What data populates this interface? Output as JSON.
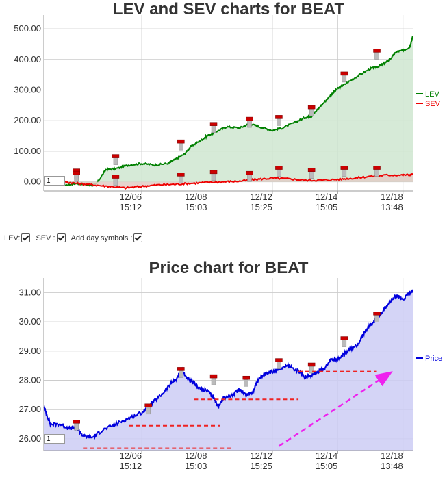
{
  "controls": {
    "lev_label": "LEV:",
    "sev_label": "SEV :",
    "day_symbols_label": "Add day symbols :",
    "lev_checked": true,
    "sev_checked": true,
    "day_symbols_checked": true
  },
  "chart_data": [
    {
      "type": "area",
      "title": "LEV and SEV charts for BEAT",
      "xlabel": "",
      "ylabel": "",
      "y_ticks": [
        "0.00",
        "100.00",
        "200.00",
        "300.00",
        "400.00",
        "500.00"
      ],
      "ylim": [
        -30,
        545
      ],
      "x_ticks": [
        {
          "date": "12/06",
          "time": "15:12"
        },
        {
          "date": "12/08",
          "time": "15:03"
        },
        {
          "date": "12/12",
          "time": "15:25"
        },
        {
          "date": "12/14",
          "time": "15:05"
        },
        {
          "date": "12/18",
          "time": "13:48"
        }
      ],
      "x_tick_positions": [
        2,
        4,
        6,
        8,
        10
      ],
      "xlim": [
        -1.0,
        10.3
      ],
      "grid": true,
      "legend_position": "right",
      "navigator_value": "1",
      "series": [
        {
          "name": "LEV",
          "color": "#008000",
          "fill": "#cfe6d0",
          "points": [
            [
              -1.0,
              -5
            ],
            [
              -0.3,
              -10
            ],
            [
              0.0,
              -5
            ],
            [
              0.4,
              -12
            ],
            [
              0.6,
              -8
            ],
            [
              0.9,
              40
            ],
            [
              1.2,
              43
            ],
            [
              1.6,
              55
            ],
            [
              2.0,
              60
            ],
            [
              2.4,
              55
            ],
            [
              2.8,
              60
            ],
            [
              3.0,
              72
            ],
            [
              3.3,
              90
            ],
            [
              3.5,
              115
            ],
            [
              3.8,
              135
            ],
            [
              4.0,
              150
            ],
            [
              4.3,
              165
            ],
            [
              4.6,
              180
            ],
            [
              5.0,
              176
            ],
            [
              5.3,
              190
            ],
            [
              5.6,
              180
            ],
            [
              6.0,
              168
            ],
            [
              6.3,
              176
            ],
            [
              6.7,
              195
            ],
            [
              7.0,
              210
            ],
            [
              7.2,
              215
            ],
            [
              7.5,
              250
            ],
            [
              7.8,
              285
            ],
            [
              8.0,
              305
            ],
            [
              8.2,
              318
            ],
            [
              8.6,
              345
            ],
            [
              9.0,
              370
            ],
            [
              9.2,
              375
            ],
            [
              9.4,
              385
            ],
            [
              9.6,
              400
            ],
            [
              9.8,
              425
            ],
            [
              10.0,
              430
            ],
            [
              10.2,
              440
            ],
            [
              10.3,
              475
            ]
          ]
        },
        {
          "name": "SEV",
          "color": "#ee0000",
          "fill": "#e2ccc6",
          "points": [
            [
              -1.0,
              5
            ],
            [
              -0.4,
              0
            ],
            [
              0.0,
              -5
            ],
            [
              0.5,
              -10
            ],
            [
              1.0,
              -15
            ],
            [
              1.5,
              -20
            ],
            [
              2.0,
              -15
            ],
            [
              2.5,
              -10
            ],
            [
              3.0,
              -8
            ],
            [
              3.5,
              -5
            ],
            [
              4.0,
              -2
            ],
            [
              4.5,
              0
            ],
            [
              5.0,
              2
            ],
            [
              5.5,
              8
            ],
            [
              6.0,
              12
            ],
            [
              6.5,
              10
            ],
            [
              7.0,
              5
            ],
            [
              7.5,
              5
            ],
            [
              8.0,
              8
            ],
            [
              8.5,
              12
            ],
            [
              9.0,
              18
            ],
            [
              9.5,
              22
            ],
            [
              10.0,
              22
            ],
            [
              10.3,
              24
            ]
          ]
        }
      ],
      "day_symbols": [
        {
          "x": 0.0,
          "y": 38
        },
        {
          "x": 0.0,
          "y": 30
        },
        {
          "x": 1.2,
          "y": 85
        },
        {
          "x": 1.2,
          "y": 18
        },
        {
          "x": 3.2,
          "y": 133
        },
        {
          "x": 3.2,
          "y": 25
        },
        {
          "x": 4.2,
          "y": 190
        },
        {
          "x": 4.2,
          "y": 33
        },
        {
          "x": 5.3,
          "y": 207
        },
        {
          "x": 5.3,
          "y": 30
        },
        {
          "x": 6.2,
          "y": 213
        },
        {
          "x": 6.2,
          "y": 47
        },
        {
          "x": 7.2,
          "y": 245
        },
        {
          "x": 7.2,
          "y": 40
        },
        {
          "x": 8.2,
          "y": 355
        },
        {
          "x": 8.2,
          "y": 47
        },
        {
          "x": 9.2,
          "y": 430
        },
        {
          "x": 9.2,
          "y": 47
        }
      ]
    },
    {
      "type": "area",
      "title": "Price chart for BEAT",
      "xlabel": "",
      "ylabel": "",
      "y_ticks": [
        "26.00",
        "27.00",
        "28.00",
        "29.00",
        "30.00",
        "31.00"
      ],
      "ylim": [
        25.6,
        31.5
      ],
      "x_ticks": [
        {
          "date": "12/06",
          "time": "15:12"
        },
        {
          "date": "12/08",
          "time": "15:03"
        },
        {
          "date": "12/12",
          "time": "15:25"
        },
        {
          "date": "12/14",
          "time": "15:05"
        },
        {
          "date": "12/18",
          "time": "13:48"
        }
      ],
      "x_tick_positions": [
        2,
        4,
        6,
        8,
        10
      ],
      "xlim": [
        -1.0,
        10.3
      ],
      "grid": true,
      "legend_position": "right",
      "navigator_value": "1",
      "series": [
        {
          "name": "Price",
          "color": "#0000dd",
          "fill": "#ccccf5",
          "points": [
            [
              -1.0,
              27.1
            ],
            [
              -0.8,
              26.5
            ],
            [
              -0.5,
              26.5
            ],
            [
              -0.2,
              26.35
            ],
            [
              0.0,
              26.4
            ],
            [
              0.2,
              26.1
            ],
            [
              0.5,
              26.05
            ],
            [
              0.8,
              26.3
            ],
            [
              1.2,
              26.5
            ],
            [
              1.6,
              26.7
            ],
            [
              2.0,
              26.9
            ],
            [
              2.3,
              27.2
            ],
            [
              2.6,
              27.5
            ],
            [
              2.9,
              27.9
            ],
            [
              3.1,
              28.1
            ],
            [
              3.2,
              28.4
            ],
            [
              3.4,
              28.05
            ],
            [
              3.6,
              27.9
            ],
            [
              3.8,
              27.7
            ],
            [
              4.0,
              27.65
            ],
            [
              4.2,
              27.4
            ],
            [
              4.35,
              27.1
            ],
            [
              4.5,
              27.4
            ],
            [
              4.8,
              27.5
            ],
            [
              5.0,
              27.7
            ],
            [
              5.2,
              27.5
            ],
            [
              5.4,
              27.6
            ],
            [
              5.6,
              28.1
            ],
            [
              5.8,
              28.2
            ],
            [
              6.0,
              28.3
            ],
            [
              6.2,
              28.4
            ],
            [
              6.5,
              28.5
            ],
            [
              6.8,
              28.3
            ],
            [
              7.0,
              28.1
            ],
            [
              7.2,
              28.2
            ],
            [
              7.4,
              28.3
            ],
            [
              7.6,
              28.4
            ],
            [
              7.8,
              28.7
            ],
            [
              8.0,
              28.7
            ],
            [
              8.3,
              29.0
            ],
            [
              8.6,
              29.2
            ],
            [
              8.8,
              29.6
            ],
            [
              9.0,
              29.9
            ],
            [
              9.2,
              30.1
            ],
            [
              9.4,
              30.4
            ],
            [
              9.6,
              30.7
            ],
            [
              9.8,
              30.9
            ],
            [
              10.0,
              30.75
            ],
            [
              10.2,
              31.0
            ],
            [
              10.3,
              31.05
            ]
          ]
        }
      ],
      "day_symbols": [
        {
          "x": 0.0,
          "y": 26.6
        },
        {
          "x": 2.2,
          "y": 27.15
        },
        {
          "x": 3.2,
          "y": 28.4
        },
        {
          "x": 4.2,
          "y": 28.15
        },
        {
          "x": 5.2,
          "y": 28.1
        },
        {
          "x": 6.2,
          "y": 28.7
        },
        {
          "x": 7.2,
          "y": 28.55
        },
        {
          "x": 8.2,
          "y": 29.45
        },
        {
          "x": 9.2,
          "y": 30.3
        }
      ],
      "annotations": {
        "support_lines": [
          {
            "x1": 0.2,
            "x2": 4.8,
            "y": 25.68
          },
          {
            "x1": 1.6,
            "x2": 4.4,
            "y": 26.45
          },
          {
            "x1": 3.6,
            "x2": 6.8,
            "y": 27.35
          },
          {
            "x1": 6.8,
            "x2": 9.2,
            "y": 28.3
          }
        ],
        "trend_arrow": {
          "x1": 6.2,
          "y1": 25.75,
          "x2": 9.6,
          "y2": 28.25
        },
        "support_color": "#ee2222",
        "arrow_color": "#ee22ee"
      }
    }
  ]
}
